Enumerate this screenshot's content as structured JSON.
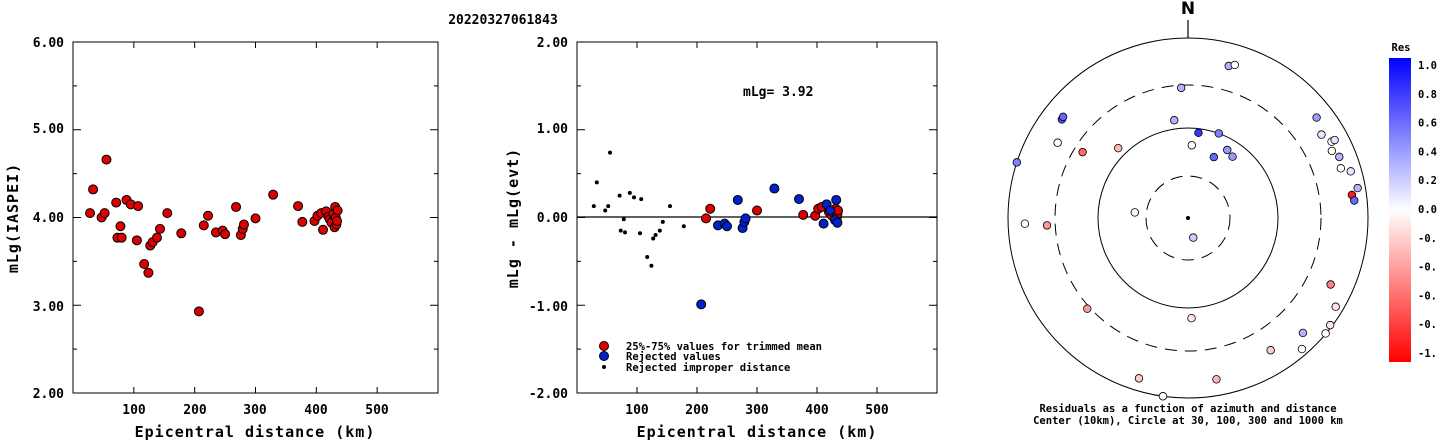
{
  "event_id": "20220327061843",
  "chart_data": [
    {
      "type": "scatter",
      "xlabel": "Epicentral distance (km)",
      "ylabel": "mLg(IASPEI)",
      "xlim": [
        0,
        600
      ],
      "ylim": [
        2.0,
        6.0
      ],
      "x_ticks": [
        "100",
        "200",
        "300",
        "400",
        "500"
      ],
      "y_ticks": [
        "2.00",
        "3.00",
        "4.00",
        "5.00",
        "6.00"
      ],
      "series": [
        {
          "color": "#dd0000",
          "points": [
            [
              28,
              4.05
            ],
            [
              33,
              4.32
            ],
            [
              47,
              4.0
            ],
            [
              52,
              4.05
            ],
            [
              55,
              4.66
            ],
            [
              71,
              4.17
            ],
            [
              73,
              3.77
            ],
            [
              78,
              3.9
            ],
            [
              80,
              3.77
            ],
            [
              88,
              4.2
            ],
            [
              95,
              4.15
            ],
            [
              105,
              3.74
            ],
            [
              107,
              4.13
            ],
            [
              117,
              3.47
            ],
            [
              124,
              3.37
            ],
            [
              127,
              3.68
            ],
            [
              131,
              3.72
            ],
            [
              138,
              3.77
            ],
            [
              143,
              3.87
            ],
            [
              155,
              4.05
            ],
            [
              178,
              3.82
            ],
            [
              207,
              2.93
            ],
            [
              215,
              3.91
            ],
            [
              222,
              4.02
            ],
            [
              235,
              3.83
            ],
            [
              246,
              3.85
            ],
            [
              250,
              3.81
            ],
            [
              268,
              4.12
            ],
            [
              276,
              3.8
            ],
            [
              279,
              3.87
            ],
            [
              281,
              3.92
            ],
            [
              300,
              3.99
            ],
            [
              329,
              4.26
            ],
            [
              370,
              4.13
            ],
            [
              377,
              3.95
            ],
            [
              397,
              3.96
            ],
            [
              402,
              4.02
            ],
            [
              408,
              4.05
            ],
            [
              411,
              3.86
            ],
            [
              416,
              4.07
            ],
            [
              420,
              4.01
            ],
            [
              422,
              3.98
            ],
            [
              425,
              3.94
            ],
            [
              428,
              4.04
            ],
            [
              430,
              3.89
            ],
            [
              431,
              4.12
            ],
            [
              432,
              4.0
            ],
            [
              433,
              3.92
            ],
            [
              434,
              3.96
            ],
            [
              435,
              4.08
            ]
          ]
        }
      ]
    },
    {
      "type": "scatter",
      "xlabel": "Epicentral distance (km)",
      "ylabel": "mLg - mLg(evt)",
      "xlim": [
        0,
        600
      ],
      "ylim": [
        -2.0,
        2.0
      ],
      "x_ticks": [
        "100",
        "200",
        "300",
        "400",
        "500"
      ],
      "y_ticks": [
        "-2.00",
        "-1.00",
        "0.00",
        "1.00",
        "2.00"
      ],
      "annotation": "mLg= 3.92",
      "hline": 0.0,
      "series": [
        {
          "name": "25%-75% values for trimmed mean",
          "color": "#dd0000",
          "marker": "circle",
          "points": [
            [
              215,
              -0.01
            ],
            [
              222,
              0.1
            ],
            [
              300,
              0.08
            ],
            [
              377,
              0.03
            ],
            [
              397,
              0.02
            ],
            [
              402,
              0.1
            ],
            [
              408,
              0.12
            ],
            [
              420,
              0.06
            ],
            [
              425,
              0.02
            ],
            [
              428,
              0.05
            ],
            [
              431,
              0.1
            ],
            [
              433,
              0.0
            ],
            [
              434,
              0.04
            ],
            [
              435,
              0.08
            ]
          ]
        },
        {
          "name": "Rejected values",
          "color": "#0022cc",
          "marker": "circle",
          "points": [
            [
              207,
              -0.99
            ],
            [
              235,
              -0.09
            ],
            [
              246,
              -0.07
            ],
            [
              250,
              -0.1
            ],
            [
              268,
              0.2
            ],
            [
              276,
              -0.12
            ],
            [
              279,
              -0.05
            ],
            [
              281,
              -0.01
            ],
            [
              329,
              0.33
            ],
            [
              370,
              0.21
            ],
            [
              411,
              -0.07
            ],
            [
              416,
              0.15
            ],
            [
              422,
              0.08
            ],
            [
              430,
              -0.03
            ],
            [
              432,
              0.2
            ],
            [
              434,
              -0.06
            ]
          ]
        },
        {
          "name": "Rejected improper distance",
          "color": "#000000",
          "marker": "dot",
          "points": [
            [
              28,
              0.13
            ],
            [
              33,
              0.4
            ],
            [
              47,
              0.08
            ],
            [
              52,
              0.13
            ],
            [
              55,
              0.74
            ],
            [
              71,
              0.25
            ],
            [
              73,
              -0.15
            ],
            [
              78,
              -0.02
            ],
            [
              80,
              -0.17
            ],
            [
              88,
              0.28
            ],
            [
              95,
              0.23
            ],
            [
              105,
              -0.18
            ],
            [
              107,
              0.21
            ],
            [
              117,
              -0.45
            ],
            [
              124,
              -0.55
            ],
            [
              127,
              -0.24
            ],
            [
              131,
              -0.2
            ],
            [
              138,
              -0.15
            ],
            [
              143,
              -0.05
            ],
            [
              155,
              0.13
            ],
            [
              178,
              -0.1
            ]
          ]
        }
      ]
    },
    {
      "type": "polar-scatter",
      "north_label": "N",
      "caption_line1": "Residuals as a function of azimuth and distance",
      "caption_line2": "Center (10km), Circle at 30, 100, 300 and 1000 km",
      "colorbar": {
        "title": "Res",
        "labels": [
          "1.0",
          "0.8",
          "0.6",
          "0.4",
          "0.2",
          "0.0",
          "-0.2",
          "-0.4",
          "-0.6",
          "-0.8",
          "-1.0"
        ],
        "colors": [
          "#0000ff",
          "#3333ff",
          "#5858ff",
          "#7f7fff",
          "#a6a6ff",
          "#ffffff",
          "#ffcccc",
          "#ffaaaa",
          "#ff7f7f",
          "#ff4c4c",
          "#ff0000"
        ]
      },
      "stations": [
        {
          "az": -52,
          "dist": 600,
          "res": 0.7
        },
        {
          "az": -51,
          "dist": 610,
          "res": 0.6
        },
        {
          "az": -60,
          "dist": 470,
          "res": 0.0
        },
        {
          "az": -58,
          "dist": 240,
          "res": -0.6
        },
        {
          "az": -45,
          "dist": 125,
          "res": -0.3
        },
        {
          "az": -8,
          "dist": 125,
          "res": 0.3
        },
        {
          "az": -3,
          "dist": 280,
          "res": 0.3
        },
        {
          "az": 3,
          "dist": 65,
          "res": 0.0
        },
        {
          "az": 7,
          "dist": 90,
          "res": 0.8
        },
        {
          "az": 15,
          "dist": 560,
          "res": 0.3
        },
        {
          "az": 17,
          "dist": 600,
          "res": 0.0
        },
        {
          "az": 20,
          "dist": 100,
          "res": 0.5
        },
        {
          "az": 30,
          "dist": 75,
          "res": 0.4
        },
        {
          "az": 23,
          "dist": 55,
          "res": 0.6
        },
        {
          "az": 36,
          "dist": 70,
          "res": 0.4
        },
        {
          "az": 52,
          "dist": 650,
          "res": 0.4
        },
        {
          "az": 58,
          "dist": 560,
          "res": 0.1
        },
        {
          "az": 62,
          "dist": 640,
          "res": 0.0
        },
        {
          "az": 62,
          "dist": 700,
          "res": 0.1
        },
        {
          "az": 65,
          "dist": 580,
          "res": 0.0
        },
        {
          "az": 68,
          "dist": 650,
          "res": 0.3
        },
        {
          "az": 72,
          "dist": 610,
          "res": 0.0
        },
        {
          "az": 74,
          "dist": 760,
          "res": 0.1
        },
        {
          "az": 80,
          "dist": 820,
          "res": 0.3
        },
        {
          "az": 82,
          "dist": 690,
          "res": -0.9
        },
        {
          "az": 84,
          "dist": 720,
          "res": 0.6
        },
        {
          "az": -72,
          "dist": 1000,
          "res": 0.5
        },
        {
          "az": -92,
          "dist": 650,
          "res": 0.0
        },
        {
          "az": -93,
          "dist": 370,
          "res": -0.4
        },
        {
          "az": -84,
          "dist": 40,
          "res": 0.0
        },
        {
          "az": 115,
          "dist": 560,
          "res": -0.5
        },
        {
          "az": 121,
          "dist": 820,
          "res": -0.1
        },
        {
          "az": 135,
          "dist": 640,
          "res": 0.3
        },
        {
          "az": 127,
          "dist": 950,
          "res": -0.1
        },
        {
          "az": 148,
          "dist": 540,
          "res": -0.2
        },
        {
          "az": 165,
          "dist": 17,
          "res": 0.2
        },
        {
          "az": 178,
          "dist": 130,
          "res": -0.1
        },
        {
          "az": 170,
          "dist": 660,
          "res": -0.3
        },
        {
          "az": 139,
          "dist": 850,
          "res": 0.0
        },
        {
          "az": -163,
          "dist": 730,
          "res": -0.2
        },
        {
          "az": -172,
          "dist": 1000,
          "res": 0.0
        },
        {
          "az": -132,
          "dist": 320,
          "res": -0.4
        },
        {
          "az": 130,
          "dist": 990,
          "res": 0.0
        }
      ]
    }
  ]
}
